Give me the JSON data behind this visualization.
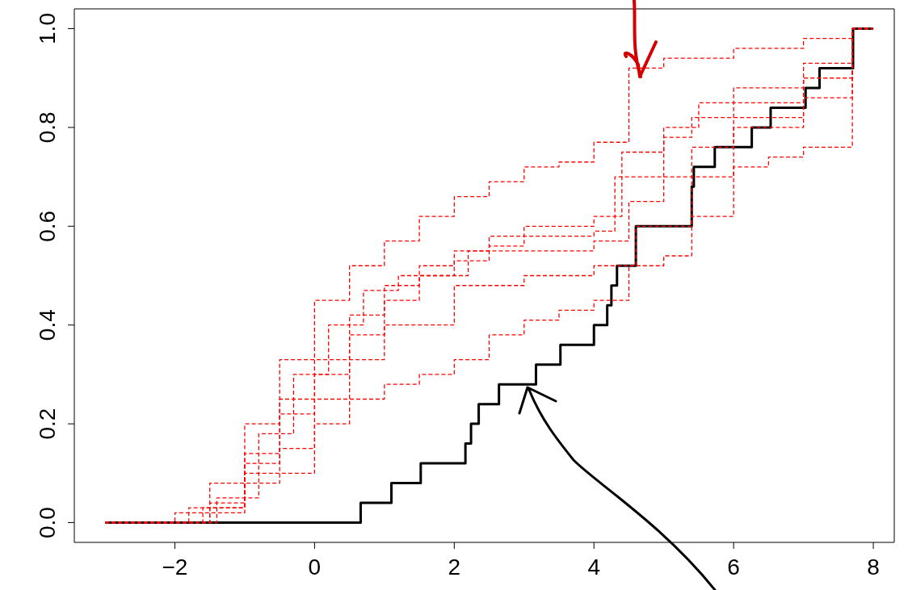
{
  "chart_data": {
    "type": "step",
    "xlim": [
      -3.44,
      8.3
    ],
    "ylim": [
      -0.04,
      1.04
    ],
    "xticks": [
      {
        "value": -2,
        "label": "−2"
      },
      0,
      2,
      4,
      6,
      8
    ],
    "yticks": [
      {
        "value": 0,
        "label": "0.0"
      },
      {
        "value": 0.2,
        "label": "0.2"
      },
      {
        "value": 0.4,
        "label": "0.4"
      },
      {
        "value": 0.6,
        "label": "0.6"
      },
      {
        "value": 0.8,
        "label": "0.8"
      },
      {
        "value": 1,
        "label": "1.0"
      }
    ],
    "series": [
      {
        "color": "#ff0000",
        "line_style": "dashed",
        "x": [
          -3,
          -2,
          -1.5,
          -1,
          -0.5,
          0,
          0.5,
          1,
          1.5,
          2,
          2.5,
          3,
          3.5,
          4,
          4.5,
          5,
          6,
          7,
          7.7,
          8
        ],
        "values": [
          0,
          0.02,
          0.08,
          0.2,
          0.33,
          0.45,
          0.52,
          0.57,
          0.62,
          0.66,
          0.69,
          0.72,
          0.73,
          0.77,
          0.92,
          0.94,
          0.96,
          0.98,
          1,
          1
        ]
      },
      {
        "color": "#ff0000",
        "line_style": "dashed",
        "x": [
          -3,
          -1.5,
          -1,
          -0.5,
          0,
          0.5,
          1,
          1.5,
          2,
          2.5,
          3,
          3.5,
          4,
          4.5,
          5,
          5.4,
          6,
          6.5,
          7,
          7.7,
          8
        ],
        "values": [
          0,
          0.02,
          0.08,
          0.15,
          0.2,
          0.25,
          0.28,
          0.3,
          0.33,
          0.38,
          0.41,
          0.43,
          0.45,
          0.52,
          0.54,
          0.62,
          0.72,
          0.74,
          0.76,
          1,
          1
        ]
      },
      {
        "color": "#ff0000",
        "line_style": "dashed",
        "x": [
          -3,
          -1.5,
          -1,
          -0.5,
          0,
          0.5,
          1,
          1.5,
          2,
          2.5,
          3,
          4,
          4.4,
          5,
          5.5,
          6,
          7,
          7.7,
          8
        ],
        "values": [
          0,
          0.04,
          0.14,
          0.25,
          0.33,
          0.42,
          0.48,
          0.52,
          0.55,
          0.58,
          0.6,
          0.62,
          0.75,
          0.8,
          0.85,
          0.88,
          0.93,
          1,
          1
        ]
      },
      {
        "color": "#ff0000",
        "line_style": "dashed",
        "x": [
          -3,
          -1.6,
          -1,
          -0.5,
          0,
          0.5,
          1,
          1.5,
          2,
          2.5,
          3,
          4,
          4.3,
          5,
          5.4,
          6,
          7,
          7.7,
          8
        ],
        "values": [
          0,
          0.03,
          0.12,
          0.22,
          0.3,
          0.38,
          0.45,
          0.5,
          0.53,
          0.56,
          0.58,
          0.59,
          0.7,
          0.78,
          0.82,
          0.85,
          0.9,
          1,
          1
        ]
      },
      {
        "color": "#ff0000",
        "line_style": "dashed",
        "x": [
          -3,
          -1.4,
          -0.8,
          -0.3,
          0.2,
          0.7,
          1.2,
          2,
          2.2,
          3,
          4,
          4.5,
          5,
          5.4,
          6,
          7,
          7.7,
          8
        ],
        "values": [
          0,
          0.05,
          0.18,
          0.3,
          0.4,
          0.47,
          0.5,
          0.5,
          0.55,
          0.55,
          0.57,
          0.65,
          0.7,
          0.76,
          0.8,
          0.86,
          1,
          1
        ]
      },
      {
        "color": "#ff0000",
        "line_style": "dashed",
        "x": [
          -3,
          -1.8,
          -1,
          0,
          0.5,
          1,
          2,
          3,
          4,
          4.6,
          5,
          5.4,
          6,
          7,
          7.7,
          8
        ],
        "values": [
          0,
          0.03,
          0.1,
          0.25,
          0.33,
          0.4,
          0.48,
          0.5,
          0.52,
          0.6,
          0.6,
          0.7,
          0.82,
          0.9,
          1,
          1
        ]
      },
      {
        "color": "#000000",
        "line_style": "solid",
        "x": [
          -3,
          0.66,
          1.1,
          1.52,
          2.16,
          2.24,
          2.35,
          2.64,
          3.17,
          3.52,
          4.0,
          4.19,
          4.25,
          4.33,
          4.6,
          5.4,
          5.43,
          5.73,
          6.26,
          6.53,
          7.03,
          7.23,
          7.71,
          8.0
        ],
        "values": [
          0,
          0.04,
          0.08,
          0.12,
          0.16,
          0.2,
          0.24,
          0.28,
          0.32,
          0.36,
          0.4,
          0.44,
          0.48,
          0.52,
          0.6,
          0.68,
          0.72,
          0.76,
          0.8,
          0.84,
          0.88,
          0.92,
          1,
          1
        ]
      }
    ]
  }
}
